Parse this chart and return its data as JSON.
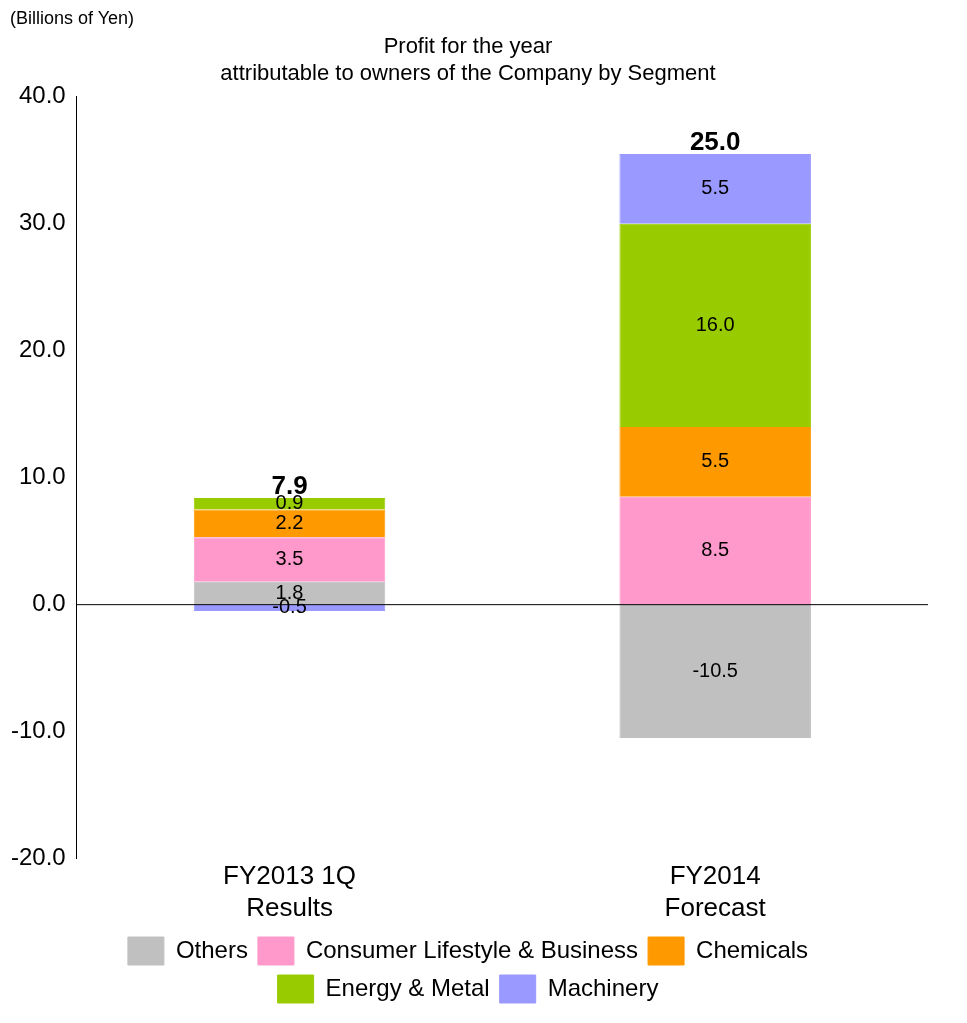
{
  "chart_data": {
    "type": "bar",
    "title": "Profit for the year\nattributable to owners of the Company by Segment",
    "ylabel": "(Billions of Yen)",
    "categories": [
      "FY2013 1Q\nResults",
      "FY2014\nForecast"
    ],
    "stacked": true,
    "series": [
      {
        "name": "Others",
        "color": "#c0c0c0",
        "values": [
          1.8,
          -10.5
        ],
        "value_labels": [
          "1.8",
          "-10.5"
        ]
      },
      {
        "name": "Consumer Lifestyle & Business",
        "color": "#ff99cc",
        "values": [
          3.5,
          8.5
        ],
        "value_labels": [
          "3.5",
          "8.5"
        ]
      },
      {
        "name": "Chemicals",
        "color": "#ff9900",
        "values": [
          2.2,
          5.5
        ],
        "value_labels": [
          "2.2",
          "5.5"
        ]
      },
      {
        "name": "Energy & Metal",
        "color": "#99cc00",
        "values": [
          0.9,
          16.0
        ],
        "value_labels": [
          "0.9",
          "16.0"
        ]
      },
      {
        "name": "Machinery",
        "color": "#9999ff",
        "values": [
          -0.5,
          5.5
        ],
        "value_labels": [
          "-0.5",
          "5.5"
        ]
      }
    ],
    "ylim": [
      -20,
      40
    ],
    "yticks": [
      {
        "value": -20,
        "label": "-20.0"
      },
      {
        "value": -10,
        "label": "-10.0"
      },
      {
        "value": 0,
        "label": "0.0"
      },
      {
        "value": 10,
        "label": "10.0"
      },
      {
        "value": 20,
        "label": "20.0"
      },
      {
        "value": 30,
        "label": "30.0"
      },
      {
        "value": 40,
        "label": "40.0"
      }
    ],
    "ref_lines": [
      {
        "axis": "y",
        "value": 0,
        "color": "#000000"
      }
    ],
    "totals": [
      "7.9",
      "25.0"
    ],
    "grid": false,
    "legend": "bottom"
  }
}
